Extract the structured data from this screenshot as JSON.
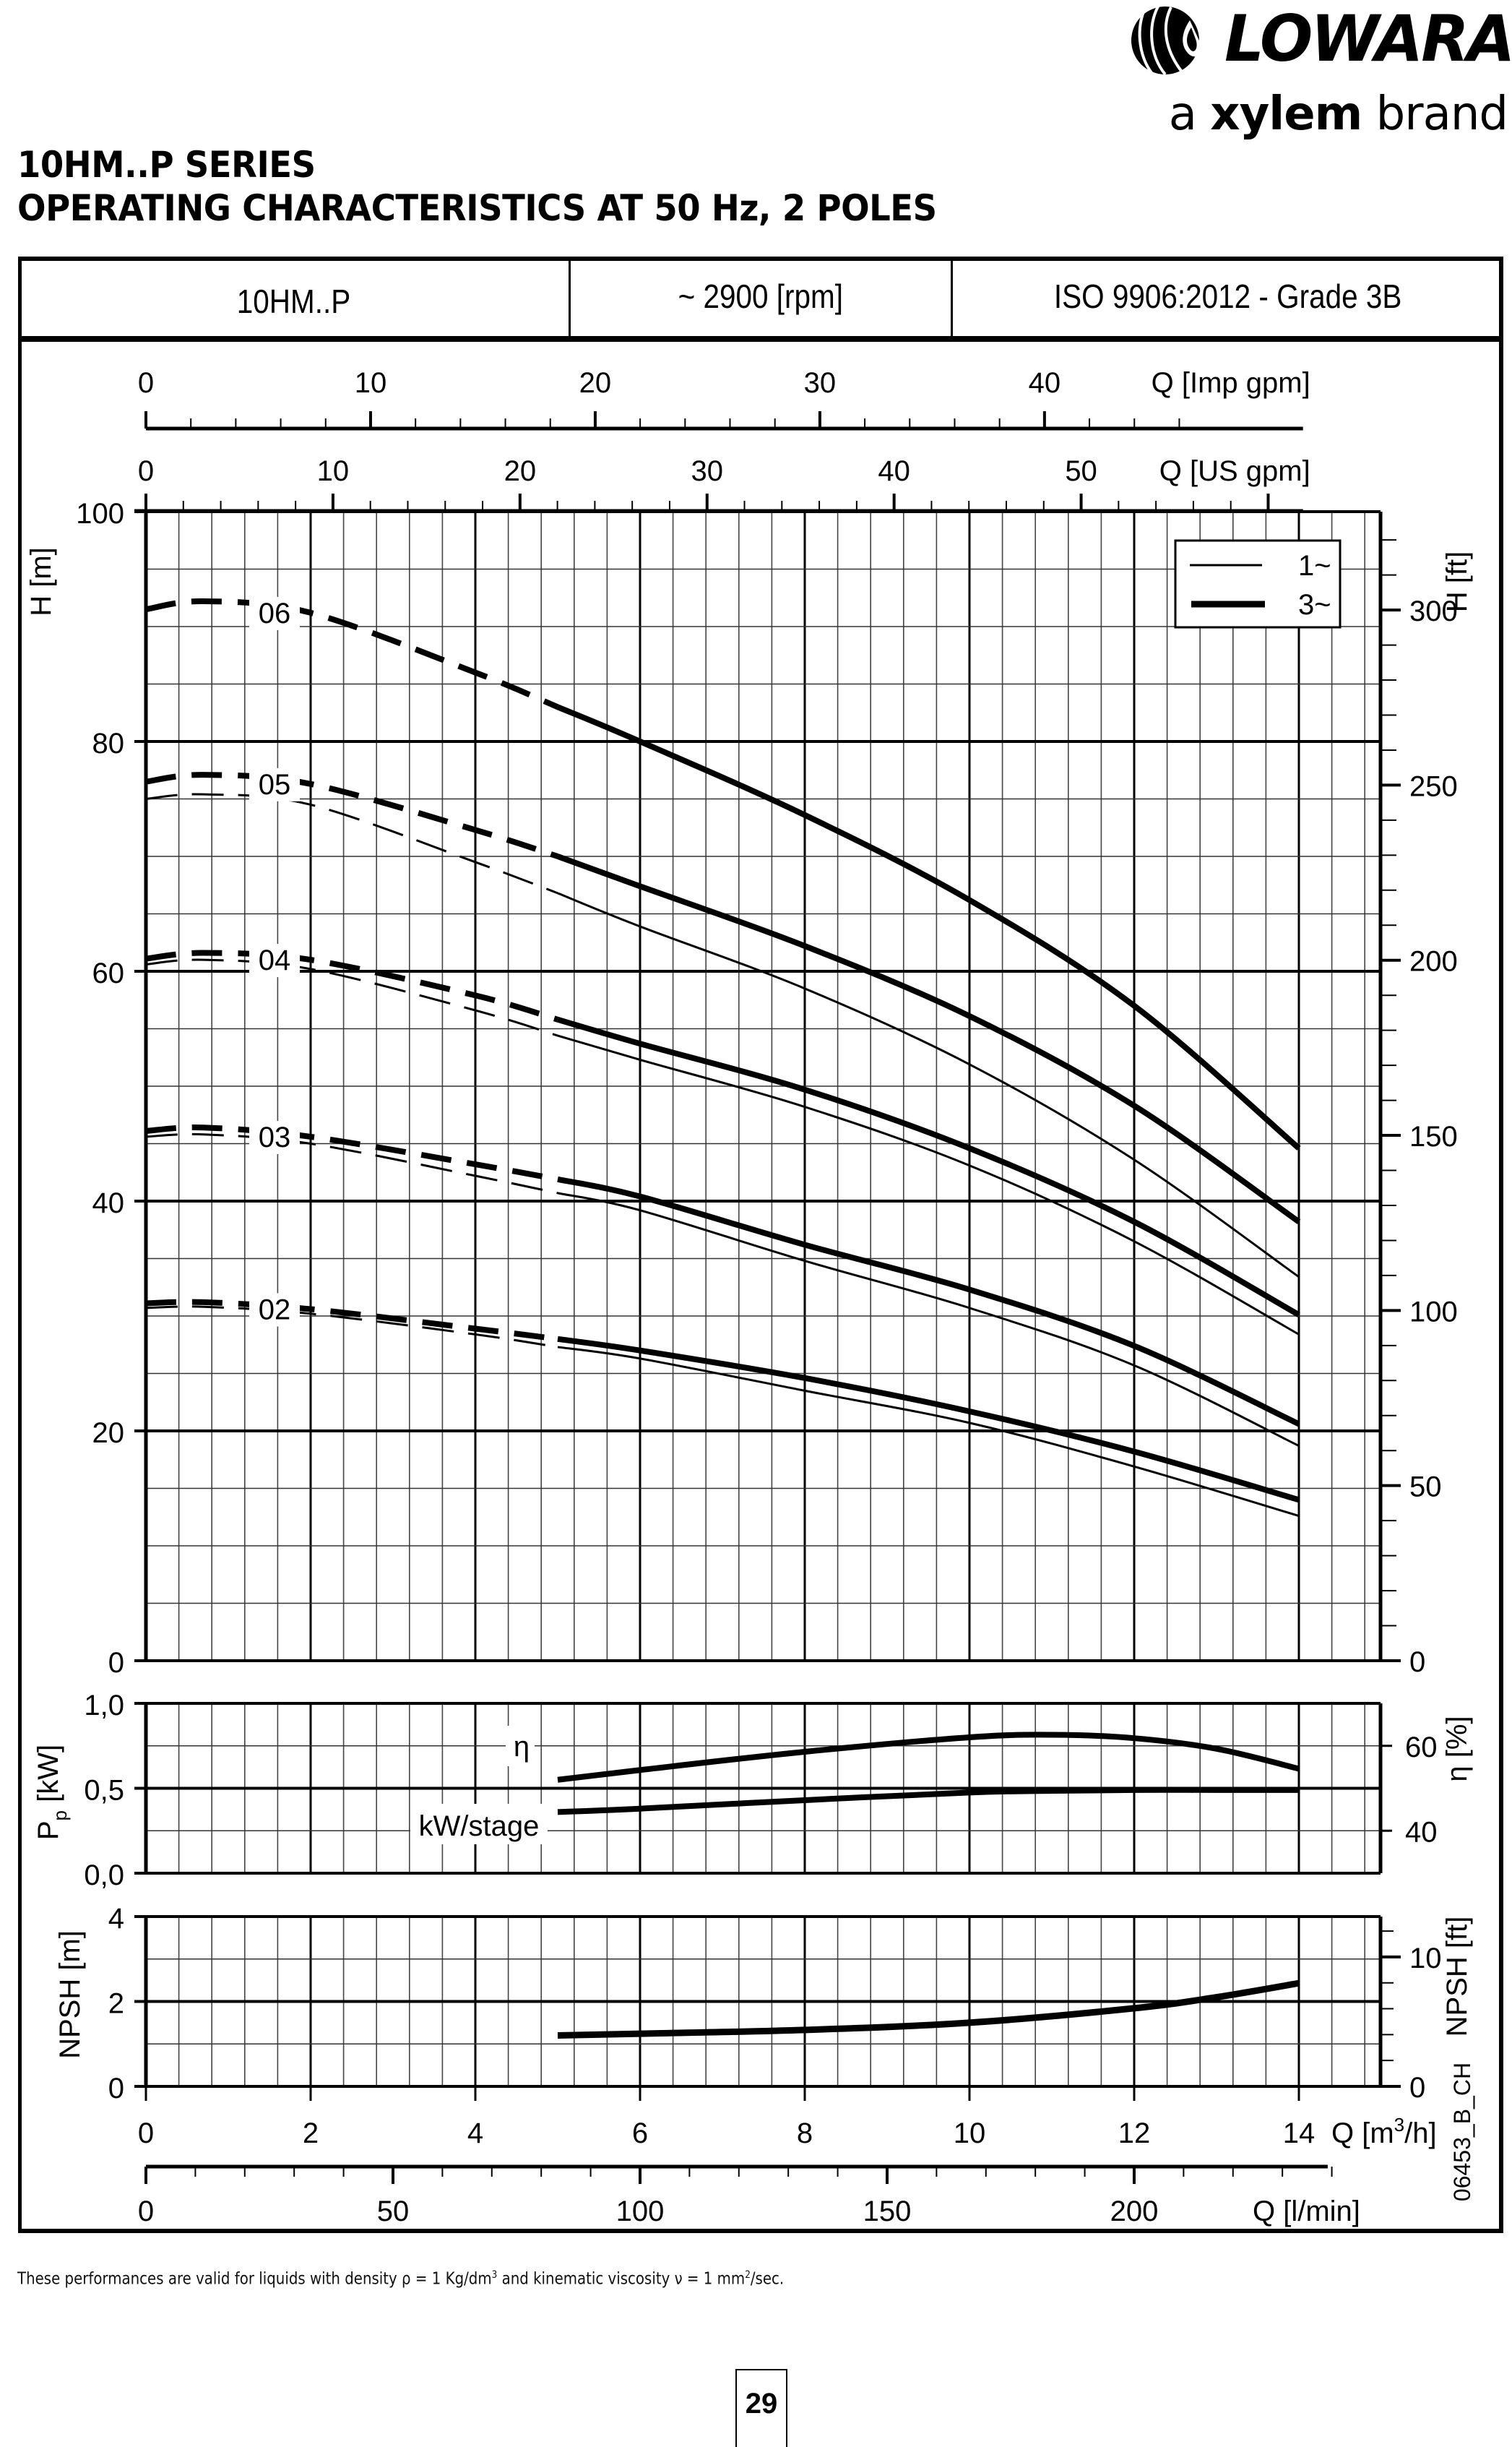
{
  "brand": {
    "name": "LOWARA",
    "tagline_prefix": "a ",
    "tagline_bold": "xylem",
    "tagline_suffix": " brand"
  },
  "title": {
    "line1": "10HM..P SERIES",
    "line2": "OPERATING CHARACTERISTICS AT 50 Hz, 2 POLES"
  },
  "header": {
    "model": "10HM..P",
    "speed": "~ 2900 [rpm]",
    "standard": "ISO 9906:2012 - Grade 3B"
  },
  "footnote": {
    "text_a": "These performances are valid for liquids with density ρ = 1 Kg/dm",
    "sup_a": "3",
    "text_b": "  and kinematic viscosity ν = 1 mm",
    "sup_b": "2",
    "text_c": "/sec."
  },
  "page_number": "29",
  "drawing_code": "06453_B_CH",
  "chart_data": [
    {
      "type": "line",
      "title": "Head curves (H vs Q)",
      "xlabel": "Q [m³/h]",
      "ylabel": "H [m]",
      "ylabel_right": "H [ft]",
      "xlim": [
        0,
        15.1
      ],
      "ylim": [
        0,
        100
      ],
      "grid": true,
      "x_ticks": [
        0,
        2,
        4,
        6,
        8,
        10,
        12,
        14
      ],
      "y_ticks": [
        0,
        20,
        40,
        60,
        80,
        100
      ],
      "y_ticks_right": [
        0,
        50,
        100,
        150,
        200,
        250,
        300
      ],
      "secondary_x_axes": [
        {
          "label": "Q [Imp gpm]",
          "ticks": [
            0,
            10,
            20,
            30,
            40
          ]
        },
        {
          "label": "Q [US gpm]",
          "ticks": [
            0,
            10,
            20,
            30,
            40,
            50
          ]
        },
        {
          "label": "Q [l/min]",
          "ticks": [
            0,
            50,
            100,
            150,
            200
          ]
        }
      ],
      "legend": {
        "position": "top-right",
        "entries": [
          {
            "label": "1~",
            "style": "thin"
          },
          {
            "label": "3~",
            "style": "thick"
          }
        ]
      },
      "dashed_region_note": "curves dashed for Q < ~5 m³/h",
      "x": [
        0,
        0.7,
        2,
        4,
        5,
        6,
        8,
        10,
        12,
        14
      ],
      "series": [
        {
          "name": "06",
          "supply": "3~",
          "values": [
            91.5,
            92.2,
            91.2,
            86.0,
            83.0,
            80.0,
            73.6,
            66.2,
            57.0,
            44.6
          ]
        },
        {
          "name": "05",
          "supply": "3~",
          "values": [
            76.5,
            77.1,
            76.3,
            72.3,
            70.0,
            67.4,
            62.2,
            56.1,
            48.3,
            38.2
          ]
        },
        {
          "name": "05",
          "supply": "1~",
          "values": [
            75.0,
            75.4,
            74.5,
            69.5,
            66.8,
            63.9,
            58.5,
            51.9,
            43.6,
            33.4
          ]
        },
        {
          "name": "04",
          "supply": "3~",
          "values": [
            61.1,
            61.6,
            61.0,
            57.9,
            55.8,
            53.7,
            49.7,
            44.6,
            38.2,
            30.1
          ]
        },
        {
          "name": "04",
          "supply": "1~",
          "values": [
            60.6,
            61.0,
            60.2,
            56.6,
            54.4,
            52.3,
            48.2,
            43.1,
            36.5,
            28.4
          ]
        },
        {
          "name": "03",
          "supply": "3~",
          "values": [
            46.1,
            46.4,
            45.6,
            43.2,
            41.9,
            40.4,
            36.2,
            32.3,
            27.4,
            20.6
          ]
        },
        {
          "name": "03",
          "supply": "1~",
          "values": [
            45.6,
            45.8,
            45.0,
            42.2,
            40.7,
            39.2,
            34.8,
            30.7,
            25.7,
            18.7
          ]
        },
        {
          "name": "02",
          "supply": "3~",
          "values": [
            31.1,
            31.2,
            30.6,
            28.9,
            28.0,
            27.0,
            24.6,
            21.7,
            18.2,
            14.0
          ]
        },
        {
          "name": "02",
          "supply": "1~",
          "values": [
            30.7,
            30.8,
            30.2,
            28.4,
            27.3,
            26.3,
            23.5,
            20.7,
            16.9,
            12.6
          ]
        }
      ]
    },
    {
      "type": "line",
      "title": "Power per stage and efficiency",
      "xlabel": "Q [m³/h]",
      "ylabel": "Pp [kW]",
      "ylabel_right": "η [%]",
      "ylim": [
        0,
        1.0
      ],
      "ylim_right": [
        30,
        70
      ],
      "y_ticks": [
        "0,0",
        "0,5",
        "1,0"
      ],
      "y_ticks_right": [
        40,
        60
      ],
      "x": [
        5,
        6,
        8,
        10,
        11,
        12,
        13,
        14
      ],
      "series": [
        {
          "name": "η",
          "axis": "right",
          "values": [
            52.0,
            54.3,
            58.6,
            62.0,
            62.6,
            61.8,
            59.3,
            54.6
          ]
        },
        {
          "name": "kW/stage",
          "axis": "left",
          "values": [
            0.36,
            0.38,
            0.43,
            0.475,
            0.485,
            0.49,
            0.49,
            0.49
          ]
        }
      ]
    },
    {
      "type": "line",
      "title": "NPSH",
      "xlabel": "Q [m³/h]",
      "ylabel": "NPSH [m]",
      "ylabel_right": "NPSH [ft]",
      "ylim": [
        0,
        4
      ],
      "y_ticks": [
        0,
        2,
        4
      ],
      "y_ticks_right": [
        0,
        10
      ],
      "x": [
        5,
        6,
        8,
        10,
        12,
        13,
        14
      ],
      "series": [
        {
          "name": "NPSH",
          "values": [
            1.2,
            1.24,
            1.33,
            1.5,
            1.84,
            2.1,
            2.43
          ]
        }
      ]
    }
  ],
  "labels": {
    "H_m": "H [m]",
    "H_ft": "H [ft]",
    "Q_imp": "Q [Imp gpm]",
    "Q_us": "Q [US gpm]",
    "Q_m3h_prefix": "Q [m",
    "Q_m3h_sup": "3",
    "Q_m3h_suffix": "/h]",
    "Q_lmin": "Q [l/min]",
    "Pp_main": "P",
    "Pp_sub": "p",
    "Pp_unit": " [kW]",
    "eta_axis": "η [%]",
    "eta_curve": "η",
    "kw_curve": "kW/stage",
    "npsh_m": "NPSH [m]",
    "npsh_ft": "NPSH [ft]",
    "legend_1": "1~",
    "legend_3": "3~",
    "pp_ticks": [
      "1,0",
      "0,5",
      "0,0"
    ]
  },
  "colors": {
    "ink": "#000000",
    "grid_minor": "#555555",
    "background": "#ffffff"
  }
}
